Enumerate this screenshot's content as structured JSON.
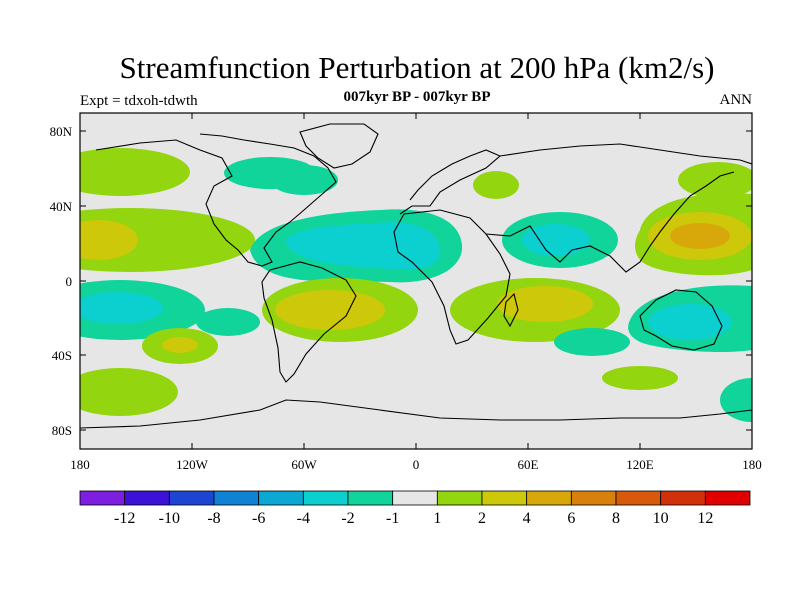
{
  "header": {
    "title": "Streamfunction Perturbation at 200 hPa (km2/s)",
    "subtitle": "007kyr BP - 007kyr BP",
    "left_label": "Expt = tdxoh-tdwth",
    "right_label": "ANN"
  },
  "axes": {
    "lon_labels": [
      "180",
      "120W",
      "60W",
      "0",
      "60E",
      "120E",
      "180"
    ],
    "lat_labels": [
      "80N",
      "40N",
      "0",
      "40S",
      "80S"
    ]
  },
  "colorbar": {
    "labels": [
      "-12",
      "-10",
      "-8",
      "-6",
      "-4",
      "-2",
      "-1",
      "1",
      "2",
      "4",
      "6",
      "8",
      "10",
      "12"
    ],
    "colors": [
      "#7d1ee0",
      "#3c12d8",
      "#1c46d2",
      "#0f82d6",
      "#0aa8d2",
      "#0ccfd0",
      "#10d49a",
      "#e6e6e6",
      "#93d50e",
      "#cdc80a",
      "#d8a80a",
      "#d8800c",
      "#d65a0a",
      "#d2300a",
      "#e00000"
    ]
  },
  "map": {
    "background": "#e6e6e6",
    "coastline_color": "#000000"
  }
}
